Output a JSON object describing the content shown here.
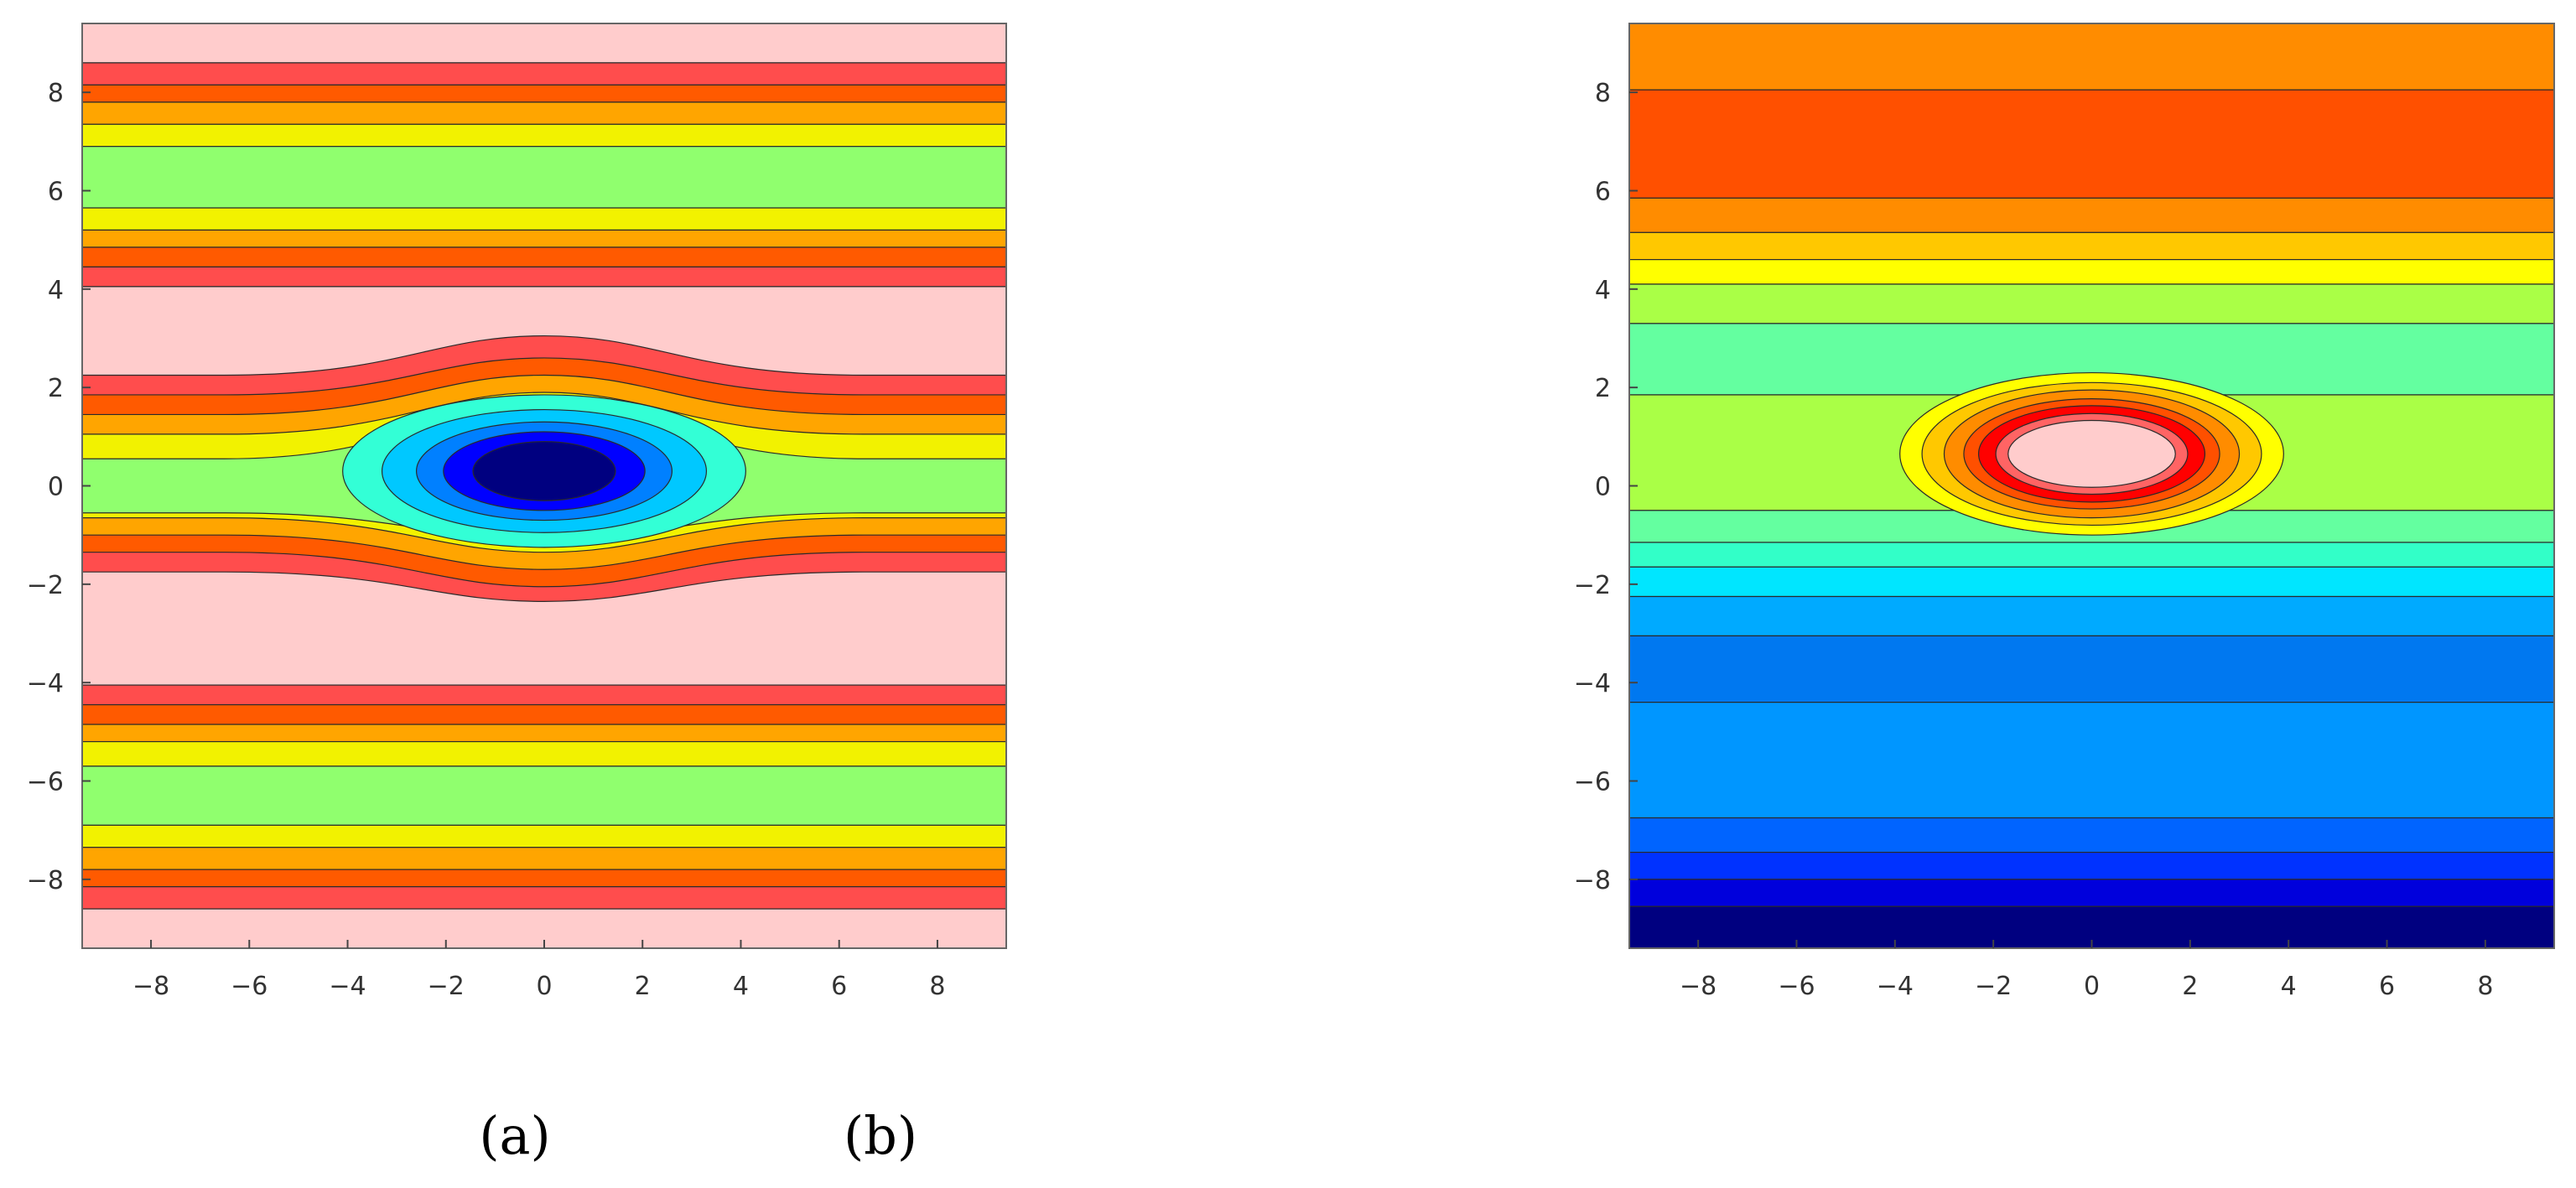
{
  "chart_data": [
    {
      "type": "heatmap",
      "subtype": "filled-contour",
      "panel_label": "(a)",
      "xlim": [
        -9.4,
        9.4
      ],
      "ylim": [
        -9.4,
        9.4
      ],
      "xticks": [
        -8,
        -6,
        -4,
        -2,
        0,
        2,
        4,
        6,
        8
      ],
      "yticks": [
        -8,
        -6,
        -4,
        -2,
        0,
        2,
        4,
        6,
        8
      ],
      "grid": false,
      "colorbar": false,
      "center": [
        0,
        0.3
      ],
      "description_bands_y": [
        {
          "from": 8.6,
          "to": 9.4,
          "color": "#ffcccc"
        },
        {
          "from": 8.15,
          "to": 8.6,
          "color": "#ff4d4d"
        },
        {
          "from": 7.8,
          "to": 8.15,
          "color": "#ff5a00"
        },
        {
          "from": 7.35,
          "to": 7.8,
          "color": "#ffa500"
        },
        {
          "from": 6.9,
          "to": 7.35,
          "color": "#f2f200"
        },
        {
          "from": 5.65,
          "to": 6.9,
          "color": "#90ff6e"
        },
        {
          "from": 5.2,
          "to": 5.65,
          "color": "#f2f200"
        },
        {
          "from": 4.85,
          "to": 5.2,
          "color": "#ffa500"
        },
        {
          "from": 4.45,
          "to": 4.85,
          "color": "#ff5a00"
        },
        {
          "from": 4.05,
          "to": 4.45,
          "color": "#ff4d4d"
        },
        {
          "from": -4.05,
          "to": 4.05,
          "color": "#ffcccc"
        },
        {
          "from": -4.45,
          "to": -4.05,
          "color": "#ff4d4d"
        },
        {
          "from": -4.85,
          "to": -4.45,
          "color": "#ff5a00"
        },
        {
          "from": -5.2,
          "to": -4.85,
          "color": "#ffa500"
        },
        {
          "from": -5.7,
          "to": -5.2,
          "color": "#f2f200"
        },
        {
          "from": -6.9,
          "to": -5.7,
          "color": "#90ff6e"
        },
        {
          "from": -7.35,
          "to": -6.9,
          "color": "#f2f200"
        },
        {
          "from": -7.8,
          "to": -7.35,
          "color": "#ffa500"
        },
        {
          "from": -8.15,
          "to": -7.8,
          "color": "#ff5a00"
        },
        {
          "from": -8.6,
          "to": -8.15,
          "color": "#ff4d4d"
        },
        {
          "from": -9.4,
          "to": -8.6,
          "color": "#ffcccc"
        }
      ],
      "central_structure": [
        {
          "level": "outer",
          "half_width_x": 9.4,
          "y_top": 2.25,
          "y_bottom": -1.75,
          "color": "#ff4d4d",
          "bulge_top": 3.05,
          "bulge_bottom": -2.35
        },
        {
          "level": 2,
          "y_top": 1.85,
          "y_bottom": -1.35,
          "bulge_top": 2.6,
          "bulge_bottom": -2.05,
          "color": "#ff5a00"
        },
        {
          "level": 3,
          "y_top": 1.45,
          "y_bottom": -1.0,
          "bulge_top": 2.25,
          "bulge_bottom": -1.7,
          "color": "#ffa500"
        },
        {
          "level": 4,
          "y_top": 1.05,
          "y_bottom": -0.65,
          "bulge_top": 1.9,
          "bulge_bottom": -1.35,
          "color": "#f2f200"
        },
        {
          "level": 5,
          "y_top": 0.55,
          "y_bottom": -0.55,
          "bulge_top": 1.65,
          "bulge_bottom": -1.1,
          "color": "#90ff6e"
        },
        {
          "level": 6,
          "rx": 4.1,
          "ry": 1.55,
          "color": "#33ffd6"
        },
        {
          "level": 7,
          "rx": 3.3,
          "ry": 1.25,
          "color": "#00c8ff"
        },
        {
          "level": 8,
          "rx": 2.6,
          "ry": 1.0,
          "color": "#0080ff"
        },
        {
          "level": 9,
          "rx": 2.05,
          "ry": 0.8,
          "color": "#0000ff"
        },
        {
          "level": 10,
          "rx": 1.45,
          "ry": 0.6,
          "color": "#000080"
        }
      ]
    },
    {
      "type": "heatmap",
      "subtype": "filled-contour",
      "panel_label": "(b)",
      "xlim": [
        -9.4,
        9.4
      ],
      "ylim": [
        -9.4,
        9.4
      ],
      "xticks": [
        -8,
        -6,
        -4,
        -2,
        0,
        2,
        4,
        6,
        8
      ],
      "yticks": [
        -8,
        -6,
        -4,
        -2,
        0,
        2,
        4,
        6,
        8
      ],
      "grid": false,
      "colorbar": false,
      "center": [
        0,
        0.65
      ],
      "description_bands_y": [
        {
          "from": 8.05,
          "to": 9.4,
          "color": "#ff8c00"
        },
        {
          "from": 5.85,
          "to": 8.05,
          "color": "#ff5000"
        },
        {
          "from": 5.15,
          "to": 5.85,
          "color": "#ff8c00"
        },
        {
          "from": 4.6,
          "to": 5.15,
          "color": "#ffc800"
        },
        {
          "from": 4.1,
          "to": 4.6,
          "color": "#ffff00"
        },
        {
          "from": 3.3,
          "to": 4.1,
          "color": "#aaff46"
        },
        {
          "from": 1.85,
          "to": 3.3,
          "color": "#64ffa0"
        },
        {
          "from": -0.5,
          "to": 1.85,
          "color": "#aaff46"
        },
        {
          "from": -1.15,
          "to": -0.5,
          "color": "#64ffa0"
        },
        {
          "from": -1.65,
          "to": -1.15,
          "color": "#32ffc8"
        },
        {
          "from": -2.25,
          "to": -1.65,
          "color": "#00e6ff"
        },
        {
          "from": -3.05,
          "to": -2.25,
          "color": "#00aaff"
        },
        {
          "from": -4.4,
          "to": -3.05,
          "color": "#0078f0"
        },
        {
          "from": -6.75,
          "to": -4.4,
          "color": "#0096ff"
        },
        {
          "from": -7.45,
          "to": -6.75,
          "color": "#0064ff"
        },
        {
          "from": -8.0,
          "to": -7.45,
          "color": "#0032ff"
        },
        {
          "from": -8.55,
          "to": -8.0,
          "color": "#0000dc"
        },
        {
          "from": -9.4,
          "to": -8.55,
          "color": "#000080"
        }
      ],
      "central_structure": [
        {
          "level": 1,
          "rx": 3.9,
          "ry": 1.65,
          "color": "#ffff00"
        },
        {
          "level": 2,
          "rx": 3.45,
          "ry": 1.45,
          "color": "#ffc800"
        },
        {
          "level": 3,
          "rx": 3.0,
          "ry": 1.3,
          "color": "#ff8c00"
        },
        {
          "level": 4,
          "rx": 2.6,
          "ry": 1.12,
          "color": "#ff5000"
        },
        {
          "level": 5,
          "rx": 2.3,
          "ry": 0.98,
          "color": "#ff0000"
        },
        {
          "level": 6,
          "rx": 1.95,
          "ry": 0.82,
          "color": "#ff6464"
        },
        {
          "level": 7,
          "rx": 1.7,
          "ry": 0.68,
          "color": "#ffcccc"
        }
      ]
    }
  ],
  "captions": {
    "a": "(a)",
    "b": "(b)"
  }
}
